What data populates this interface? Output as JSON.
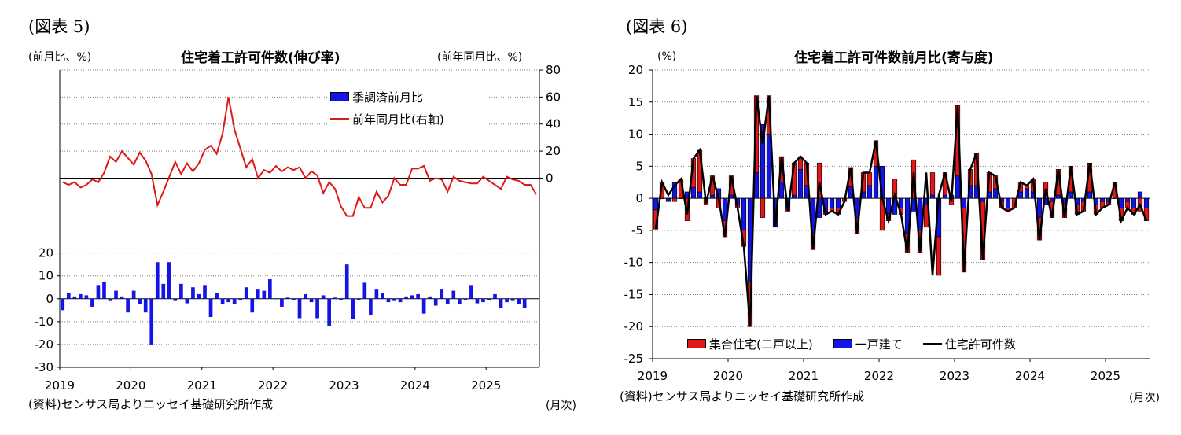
{
  "panel5": {
    "fig_label": "(図表 5)",
    "left_unit": "(前月比、%)",
    "right_unit": "(前年同月比、%)",
    "title": "住宅着工許可件数(伸び率)",
    "source": "(資料)センサス局よりニッセイ基礎研究所作成",
    "x_unit": "(月次)",
    "legend": {
      "bar": "季調済前月比",
      "line": "前年同月比(右軸)"
    }
  },
  "panel6": {
    "fig_label": "(図表 6)",
    "unit": "(%)",
    "title": "住宅着工許可件数前月比(寄与度)",
    "source": "(資料)センサス局よりニッセイ基礎研究所作成",
    "x_unit": "(月次)",
    "legend": {
      "multi": "集合住宅(二戸以上)",
      "single": "一戸建て",
      "total": "住宅許可件数"
    }
  },
  "colors": {
    "blue": "#1414e6",
    "red": "#e01818",
    "dark_red": "#c41818",
    "black": "#000000",
    "grid": "#808080"
  },
  "chart_data": [
    {
      "type": "bar+line",
      "title": "住宅着工許可件数(伸び率)",
      "x_tick_labels": [
        "2019",
        "2020",
        "2021",
        "2022",
        "2023",
        "2024",
        "2025"
      ],
      "x_start": "2019-01",
      "left_axis": {
        "label": "(前月比、%)",
        "ylim": [
          -30,
          100
        ],
        "ticks": [
          -30,
          -20,
          -10,
          0,
          10,
          20
        ],
        "tick_labels": [
          "-30",
          "-20",
          "-10",
          "0",
          "10",
          "20"
        ]
      },
      "right_axis": {
        "label": "(前年同月比、%)",
        "ylim": [
          -140,
          80
        ],
        "ticks": [
          0,
          20,
          40,
          60,
          80
        ],
        "tick_labels": [
          "0",
          "20",
          "40",
          "60",
          "80"
        ]
      },
      "grid": true,
      "legend_position": "top-right",
      "series": [
        {
          "name": "季調済前月比",
          "kind": "bar",
          "axis": "left",
          "values": [
            -5,
            2.5,
            1,
            2,
            1.5,
            -3.5,
            6,
            7.5,
            -1,
            3.5,
            1,
            -6,
            3.5,
            -2.5,
            -6,
            -20,
            16,
            6.5,
            16,
            -1,
            6.5,
            -2,
            5,
            2,
            6,
            -8,
            2.5,
            -2.5,
            -1.5,
            -2.5,
            -0.5,
            5,
            -6,
            4,
            3.5,
            8.5,
            0,
            -3.5,
            0.5,
            -0.5,
            -8.5,
            2,
            -1.5,
            -8.5,
            1.5,
            -12,
            0.5,
            -0.5,
            15,
            -9,
            -0.5,
            7,
            -7,
            4,
            2.5,
            -1.5,
            -1,
            -1.5,
            1,
            1.5,
            2,
            -6.5,
            1,
            -3,
            4,
            -2.5,
            3.5,
            -2.5,
            -0.5,
            6,
            -2,
            -1.5,
            -0.5,
            2,
            -4,
            -1.5,
            -1,
            -2.5,
            -4
          ]
        },
        {
          "name": "前年同月比(右軸)",
          "kind": "line",
          "axis": "right",
          "values": [
            -3,
            -5,
            -3,
            -7,
            -5,
            -1,
            -3,
            4,
            16,
            12,
            20,
            15,
            10,
            19,
            13,
            3,
            -20,
            -10,
            1,
            12,
            3,
            11,
            5,
            11,
            21,
            24,
            18,
            33,
            60,
            36,
            22,
            8,
            14,
            0,
            6,
            4,
            9,
            5,
            8,
            6,
            8,
            0,
            5,
            2,
            -11,
            -3,
            -8,
            -21,
            -28,
            -28,
            -14,
            -22,
            -22,
            -10,
            -18,
            -13,
            0,
            -5,
            -5,
            7,
            7,
            9,
            -2,
            0,
            -1,
            -10,
            1,
            -2,
            -3,
            -4,
            -4,
            1,
            -2,
            -5,
            -8,
            1,
            -1,
            -2,
            -5,
            -5,
            -12
          ]
        }
      ]
    },
    {
      "type": "stacked-bar+line",
      "title": "住宅着工許可件数前月比(寄与度)",
      "x_tick_labels": [
        "2019",
        "2020",
        "2021",
        "2022",
        "2023",
        "2024",
        "2025"
      ],
      "x_start": "2019-01",
      "y_axis": {
        "label": "(%)",
        "ylim": [
          -25,
          20
        ],
        "ticks": [
          -25,
          -20,
          -15,
          -10,
          -5,
          0,
          5,
          10,
          15,
          20
        ],
        "tick_labels": [
          "-25",
          "-20",
          "-15",
          "-10",
          "-5",
          "0",
          "5",
          "10",
          "15",
          "20"
        ]
      },
      "grid": true,
      "legend_position": "bottom",
      "series": [
        {
          "name": "集合住宅(二戸以上)",
          "kind": "bar",
          "values": [
            -3,
            2.5,
            0,
            -0.5,
            3,
            -3.5,
            4.5,
            6.5,
            -1,
            3,
            -1.5,
            -2.5,
            3,
            -0.5,
            -2.5,
            -7,
            12,
            -3,
            6,
            0,
            4,
            -0.5,
            5,
            2,
            3.5,
            -2.5,
            5.5,
            -0.5,
            -0.5,
            -1,
            -0.5,
            3,
            -2.5,
            3,
            2,
            4,
            -5,
            -1,
            3,
            -1,
            -3,
            6,
            -3.5,
            -3.5,
            3.5,
            -6,
            3.5,
            -1,
            11,
            -10,
            2.5,
            5,
            -9,
            3,
            2,
            -1,
            -0.5,
            -1.5,
            1.5,
            0.5,
            2,
            -3.5,
            2.5,
            -2.5,
            4,
            -2,
            4,
            -1.5,
            -1.5,
            4.5,
            -1.5,
            -1,
            -0.5,
            2.5,
            -2,
            -1,
            -1,
            -2,
            -2
          ]
        },
        {
          "name": "一戸建て",
          "kind": "bar",
          "values": [
            -1.8,
            0,
            -0.5,
            2.5,
            0,
            1,
            1.7,
            1,
            0.2,
            0.5,
            1.5,
            -3.5,
            0.5,
            -1,
            -5,
            -13,
            4,
            11.5,
            10,
            -4.5,
            2.5,
            -1.5,
            0.5,
            4.5,
            2,
            -5.5,
            -3,
            -2,
            -1.5,
            -1.5,
            0,
            1.8,
            -3,
            1,
            2,
            5,
            5,
            -2.5,
            -2.5,
            -1.5,
            -5.5,
            -2,
            -5,
            -1,
            0.5,
            -6,
            0.5,
            0.5,
            3.5,
            -1.5,
            2,
            2,
            -0.5,
            1,
            1.5,
            -0.5,
            -1.5,
            0,
            1,
            1.5,
            1,
            -3,
            -1,
            -0.5,
            0.5,
            -1,
            1,
            -1,
            -0.5,
            1,
            -1,
            -0.5,
            -0.5,
            0,
            -1.5,
            -0.5,
            -1.5,
            1,
            -1.5
          ]
        },
        {
          "name": "住宅許可件数",
          "kind": "line",
          "values": [
            -4.8,
            2.5,
            0.5,
            2,
            3,
            -2.5,
            6.2,
            7.5,
            -0.8,
            3.5,
            0,
            -6,
            3.5,
            -1.5,
            -7.5,
            -20,
            16,
            8.5,
            16,
            -4.5,
            6.5,
            -2,
            5.5,
            6.5,
            5.5,
            -8,
            2.5,
            -2.5,
            -2,
            -2.5,
            -0.5,
            4.8,
            -5.5,
            4,
            4,
            9,
            0,
            -3.5,
            0.5,
            -2.5,
            -8.5,
            4,
            -8.5,
            4,
            -12,
            0.5,
            4,
            -0.5,
            14.5,
            -11.5,
            4.5,
            7,
            -9.5,
            4,
            3.5,
            -1.5,
            -2,
            -1.5,
            2.5,
            2,
            3,
            -6.5,
            1.5,
            -3,
            4.5,
            -3,
            5,
            -2.5,
            -2,
            5.5,
            -2.5,
            -1.5,
            -1,
            2.5,
            -3.5,
            -1.5,
            -2.5,
            -1,
            -3.5
          ]
        }
      ]
    }
  ]
}
